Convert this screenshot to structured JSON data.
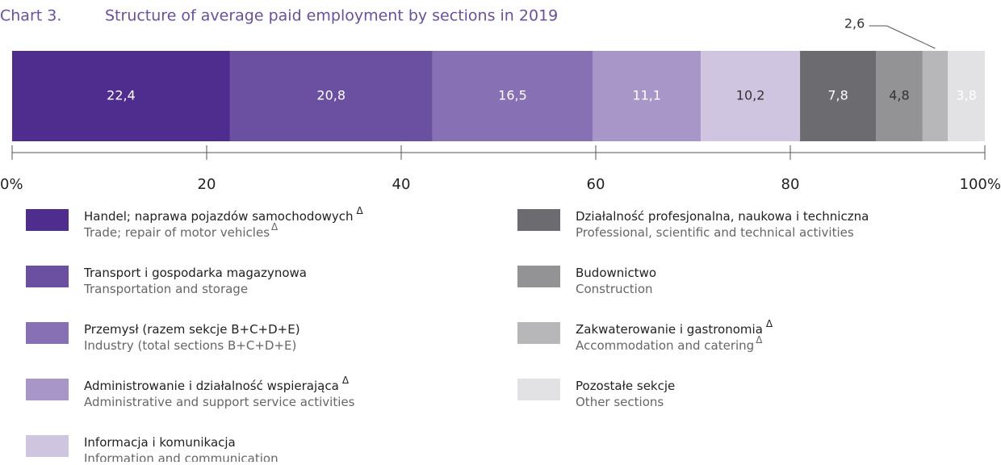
{
  "chart_data": {
    "type": "stacked_bar_100",
    "chart_label": "Chart 3.",
    "title": "Structure of average paid employment by sections in 2019",
    "xlim": [
      0,
      100
    ],
    "xticks": [
      {
        "value": 0,
        "label": "0%"
      },
      20,
      40,
      60,
      80,
      {
        "value": 100,
        "label": "100%"
      }
    ],
    "series": [
      {
        "name": "Handel; naprawa pojazdów samochodowych",
        "name_flag": "Δ",
        "name_en": "Trade; repair of motor vehicles",
        "name_en_flag": "Δ",
        "color": "#4f2d8f",
        "values": [
          22.4
        ],
        "value_labels": [
          "22,4"
        ]
      },
      {
        "name": "Transport i gospodarka magazynowa",
        "name_en": "Transportation and storage",
        "color": "#6b4fa0",
        "values": [
          20.8
        ],
        "value_labels": [
          "20,8"
        ]
      },
      {
        "name": "Przemysł (razem sekcje B+C+D+E)",
        "name_en": "Industry (total sections B+C+D+E)",
        "color": "#8870b4",
        "values": [
          16.5
        ],
        "value_labels": [
          "16,5"
        ]
      },
      {
        "name": "Administrowanie i działalność wspierająca",
        "name_flag": "Δ",
        "name_en": "Administrative and support service activities",
        "color": "#a896c8",
        "values": [
          11.1
        ],
        "value_labels": [
          "11,1"
        ]
      },
      {
        "name": "Informacja i komunikacja",
        "name_en": "Information and communication",
        "color": "#cfc5e0",
        "values": [
          10.2
        ],
        "value_labels": [
          "10,2"
        ]
      },
      {
        "name": "Działalność profesjonalna, naukowa i techniczna",
        "name_en": "Professional, scientific and technical activities",
        "color": "#6c6b6f",
        "values": [
          7.8
        ],
        "value_labels": [
          "7,8"
        ]
      },
      {
        "name": "Budownictwo",
        "name_en": "Construction",
        "color": "#939396",
        "values": [
          4.8
        ],
        "value_labels": [
          "4,8"
        ]
      },
      {
        "name": "Zakwaterowanie i gastronomia",
        "name_flag": "Δ",
        "name_en": "Accommodation and catering",
        "name_en_flag": "Δ",
        "color": "#b7b7b9",
        "values": [
          2.6
        ],
        "value_labels": [
          "2,6"
        ]
      },
      {
        "name": "Pozostałe sekcje",
        "name_en": "Other sections",
        "color": "#e2e2e4",
        "values": [
          3.8
        ],
        "value_labels": [
          "3,8"
        ]
      }
    ]
  }
}
